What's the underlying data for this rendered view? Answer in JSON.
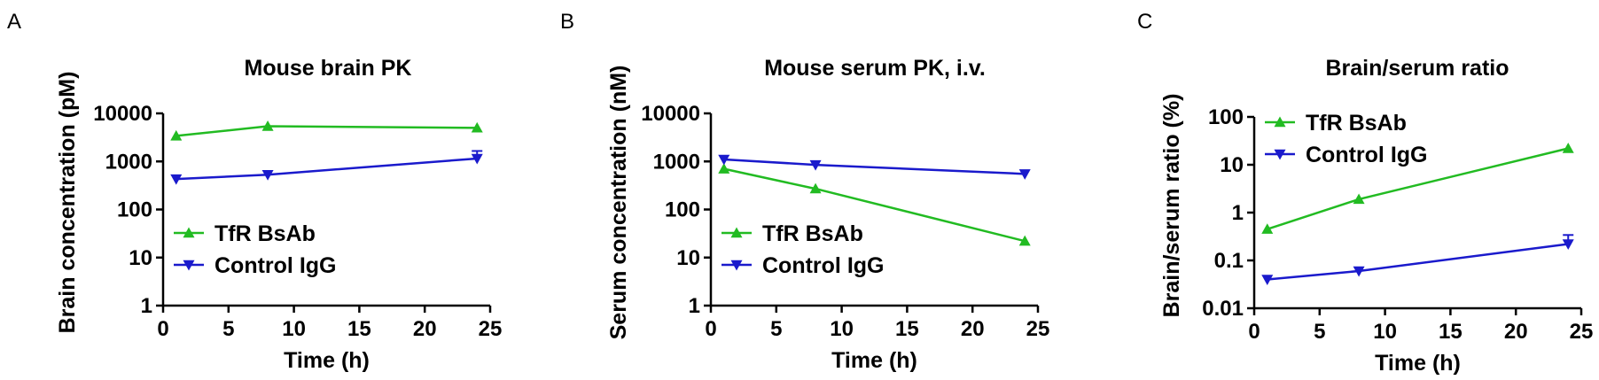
{
  "chart_data": [
    {
      "panel": "A",
      "type": "line",
      "title": "Mouse brain PK",
      "xlabel": "Time (h)",
      "ylabel": "Brain concentration (pM)",
      "xlim": [
        0,
        25
      ],
      "xticks": [
        0,
        5,
        10,
        15,
        20,
        25
      ],
      "ylim": [
        1,
        10000
      ],
      "yscale": "log",
      "yticks": [
        1,
        10,
        100,
        1000,
        10000
      ],
      "ytick_labels": [
        "1",
        "10",
        "100",
        "1000",
        "10000"
      ],
      "grid": false,
      "legend": "bottom-left",
      "series": [
        {
          "name": "TfR BsAb",
          "color": "#22bb22",
          "marker": "triangle-up",
          "x": [
            1,
            8,
            24
          ],
          "y": [
            3400,
            5400,
            5000
          ],
          "err": [
            0,
            0,
            0
          ]
        },
        {
          "name": "Control IgG",
          "color": "#1a1acc",
          "marker": "triangle-down",
          "x": [
            1,
            8,
            24
          ],
          "y": [
            430,
            530,
            1150
          ],
          "err": [
            0,
            0,
            500
          ]
        }
      ]
    },
    {
      "panel": "B",
      "type": "line",
      "title": "Mouse serum PK, i.v.",
      "xlabel": "Time (h)",
      "ylabel": "Serum concentration (nM)",
      "xlim": [
        0,
        25
      ],
      "xticks": [
        0,
        5,
        10,
        15,
        20,
        25
      ],
      "ylim": [
        1,
        10000
      ],
      "yscale": "log",
      "yticks": [
        1,
        10,
        100,
        1000,
        10000
      ],
      "ytick_labels": [
        "1",
        "10",
        "100",
        "1000",
        "10000"
      ],
      "grid": false,
      "legend": "bottom-left",
      "series": [
        {
          "name": "TfR BsAb",
          "color": "#22bb22",
          "marker": "triangle-up",
          "x": [
            1,
            8,
            24
          ],
          "y": [
            700,
            270,
            22
          ],
          "err": [
            0,
            0,
            0
          ]
        },
        {
          "name": "Control IgG",
          "color": "#1a1acc",
          "marker": "triangle-down",
          "x": [
            1,
            8,
            24
          ],
          "y": [
            1100,
            850,
            550
          ],
          "err": [
            0,
            0,
            0
          ]
        }
      ]
    },
    {
      "panel": "C",
      "type": "line",
      "title": "Brain/serum ratio",
      "xlabel": "Time (h)",
      "ylabel": "Brain/serum ratio (%)",
      "xlim": [
        0,
        25
      ],
      "xticks": [
        0,
        5,
        10,
        15,
        20,
        25
      ],
      "ylim": [
        0.01,
        100
      ],
      "yscale": "log",
      "yticks": [
        0.01,
        0.1,
        1,
        10,
        100
      ],
      "ytick_labels": [
        "0.01",
        "0.1",
        "1",
        "10",
        "100"
      ],
      "grid": false,
      "legend": "top-left",
      "series": [
        {
          "name": "TfR BsAb",
          "color": "#22bb22",
          "marker": "triangle-up",
          "x": [
            1,
            8,
            24
          ],
          "y": [
            0.45,
            1.9,
            22
          ],
          "err": [
            0,
            0,
            0
          ]
        },
        {
          "name": "Control IgG",
          "color": "#1a1acc",
          "marker": "triangle-down",
          "x": [
            1,
            8,
            24
          ],
          "y": [
            0.04,
            0.06,
            0.22
          ],
          "err": [
            0,
            0,
            0.12
          ]
        }
      ]
    }
  ]
}
